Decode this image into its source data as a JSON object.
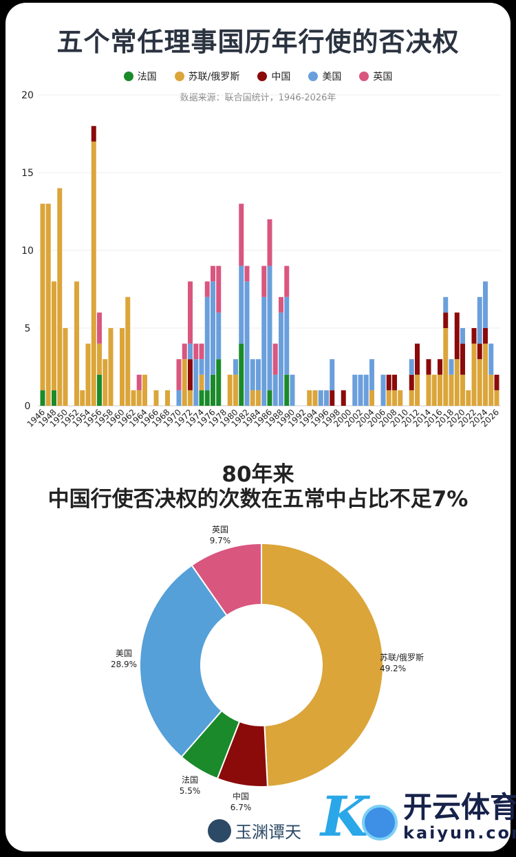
{
  "title": "五个常任理事国历年行使的否决权",
  "source": "数据来源：联合国统计，1946-2026年",
  "legend": [
    {
      "name": "法国",
      "color": "#1a8a2a"
    },
    {
      "name": "苏联/俄罗斯",
      "color": "#dba53a"
    },
    {
      "name": "中国",
      "color": "#8b0a0a"
    },
    {
      "name": "美国",
      "color": "#6a9fdc"
    },
    {
      "name": "英国",
      "color": "#d9567f"
    }
  ],
  "chart_data": [
    {
      "type": "bar",
      "stacked": true,
      "title": "五个常任理事国历年行使的否决权",
      "ylim": [
        0,
        20
      ],
      "yticks": [
        "0",
        "5",
        "10",
        "15",
        "20"
      ],
      "x_start": 1946,
      "x_end": 2026,
      "series_order": [
        "France",
        "USSR/Russia",
        "China",
        "USA",
        "UK"
      ],
      "values": {
        "1946": [
          1,
          12,
          0,
          0,
          0
        ],
        "1947": [
          0,
          13,
          0,
          0,
          0
        ],
        "1948": [
          1,
          7,
          0,
          0,
          0
        ],
        "1949": [
          0,
          14,
          0,
          0,
          0
        ],
        "1950": [
          0,
          5,
          0,
          0,
          0
        ],
        "1951": [
          0,
          0,
          0,
          0,
          0
        ],
        "1952": [
          0,
          8,
          0,
          0,
          0
        ],
        "1953": [
          0,
          1,
          0,
          0,
          0
        ],
        "1954": [
          0,
          4,
          0,
          0,
          0
        ],
        "1955": [
          0,
          17,
          1,
          0,
          0
        ],
        "1956": [
          2,
          2,
          0,
          0,
          2
        ],
        "1957": [
          0,
          3,
          0,
          0,
          0
        ],
        "1958": [
          0,
          5,
          0,
          0,
          0
        ],
        "1959": [
          0,
          0,
          0,
          0,
          0
        ],
        "1960": [
          0,
          5,
          0,
          0,
          0
        ],
        "1961": [
          0,
          7,
          0,
          0,
          0
        ],
        "1962": [
          0,
          1,
          0,
          0,
          0
        ],
        "1963": [
          0,
          1,
          0,
          0,
          1
        ],
        "1964": [
          0,
          2,
          0,
          0,
          0
        ],
        "1965": [
          0,
          0,
          0,
          0,
          0
        ],
        "1966": [
          0,
          1,
          0,
          0,
          0
        ],
        "1967": [
          0,
          0,
          0,
          0,
          0
        ],
        "1968": [
          0,
          1,
          0,
          0,
          0
        ],
        "1969": [
          0,
          0,
          0,
          0,
          0
        ],
        "1970": [
          0,
          0,
          0,
          1,
          2
        ],
        "1971": [
          0,
          3,
          0,
          0,
          1
        ],
        "1972": [
          0,
          1,
          2,
          1,
          4
        ],
        "1973": [
          0,
          0,
          0,
          3,
          1
        ],
        "1974": [
          1,
          1,
          0,
          1,
          1
        ],
        "1975": [
          1,
          0,
          0,
          6,
          1
        ],
        "1976": [
          2,
          0,
          0,
          6,
          1
        ],
        "1977": [
          3,
          0,
          0,
          3,
          3
        ],
        "1978": [
          0,
          0,
          0,
          0,
          0
        ],
        "1979": [
          0,
          2,
          0,
          0,
          0
        ],
        "1980": [
          0,
          2,
          0,
          1,
          0
        ],
        "1981": [
          4,
          0,
          0,
          5,
          4
        ],
        "1982": [
          0,
          0,
          0,
          8,
          1
        ],
        "1983": [
          0,
          1,
          0,
          2,
          0
        ],
        "1984": [
          0,
          1,
          0,
          2,
          0
        ],
        "1985": [
          0,
          0,
          0,
          7,
          2
        ],
        "1986": [
          1,
          0,
          0,
          8,
          3
        ],
        "1987": [
          0,
          0,
          0,
          2,
          2
        ],
        "1988": [
          0,
          0,
          0,
          6,
          1
        ],
        "1989": [
          2,
          0,
          0,
          5,
          2
        ],
        "1990": [
          0,
          0,
          0,
          2,
          0
        ],
        "1991": [
          0,
          0,
          0,
          0,
          0
        ],
        "1992": [
          0,
          0,
          0,
          0,
          0
        ],
        "1993": [
          0,
          1,
          0,
          0,
          0
        ],
        "1994": [
          0,
          1,
          0,
          0,
          0
        ],
        "1995": [
          0,
          0,
          0,
          1,
          0
        ],
        "1996": [
          0,
          0,
          0,
          1,
          0
        ],
        "1997": [
          0,
          0,
          1,
          2,
          0
        ],
        "1998": [
          0,
          0,
          0,
          0,
          0
        ],
        "1999": [
          0,
          0,
          1,
          0,
          0
        ],
        "2000": [
          0,
          0,
          0,
          0,
          0
        ],
        "2001": [
          0,
          0,
          0,
          2,
          0
        ],
        "2002": [
          0,
          0,
          0,
          2,
          0
        ],
        "2003": [
          0,
          0,
          0,
          2,
          0
        ],
        "2004": [
          0,
          1,
          0,
          2,
          0
        ],
        "2005": [
          0,
          0,
          0,
          0,
          0
        ],
        "2006": [
          0,
          0,
          0,
          2,
          0
        ],
        "2007": [
          0,
          1,
          1,
          0,
          0
        ],
        "2008": [
          0,
          1,
          1,
          0,
          0
        ],
        "2009": [
          0,
          1,
          0,
          0,
          0
        ],
        "2010": [
          0,
          0,
          0,
          0,
          0
        ],
        "2011": [
          0,
          1,
          1,
          1,
          0
        ],
        "2012": [
          0,
          2,
          2,
          0,
          0
        ],
        "2013": [
          0,
          0,
          0,
          0,
          0
        ],
        "2014": [
          0,
          2,
          1,
          0,
          0
        ],
        "2015": [
          0,
          2,
          0,
          0,
          0
        ],
        "2016": [
          0,
          2,
          1,
          0,
          0
        ],
        "2017": [
          0,
          5,
          1,
          1,
          0
        ],
        "2018": [
          0,
          2,
          0,
          1,
          0
        ],
        "2019": [
          0,
          3,
          3,
          0,
          0
        ],
        "2020": [
          0,
          2,
          2,
          1,
          0
        ],
        "2021": [
          0,
          1,
          0,
          0,
          0
        ],
        "2022": [
          0,
          4,
          1,
          0,
          0
        ],
        "2023": [
          0,
          3,
          1,
          3,
          0
        ],
        "2024": [
          0,
          4,
          1,
          3,
          0
        ],
        "2025": [
          0,
          2,
          0,
          2,
          0
        ],
        "2026": [
          0,
          1,
          1,
          0,
          0
        ]
      }
    },
    {
      "type": "pie",
      "donut": true,
      "title_line1": "80年来",
      "title_line2": "中国行使否决权的次数在五常中占比不足7%",
      "slices": [
        {
          "name": "苏联/俄罗斯",
          "percent": 49.2,
          "label": "49.2%",
          "color": "#dba53a"
        },
        {
          "name": "中国",
          "percent": 6.7,
          "label": "6.7%",
          "color": "#8b0a0a"
        },
        {
          "name": "法国",
          "percent": 5.5,
          "label": "5.5%",
          "color": "#1a8a2a"
        },
        {
          "name": "美国",
          "percent": 28.9,
          "label": "28.9%",
          "color": "#55a0d8"
        },
        {
          "name": "英国",
          "percent": 9.7,
          "label": "9.7%",
          "color": "#d9567f"
        }
      ]
    }
  ],
  "logos": {
    "left": "玉渊谭天",
    "right_cn": "开云体育",
    "right_en": "kaiyun.com"
  }
}
